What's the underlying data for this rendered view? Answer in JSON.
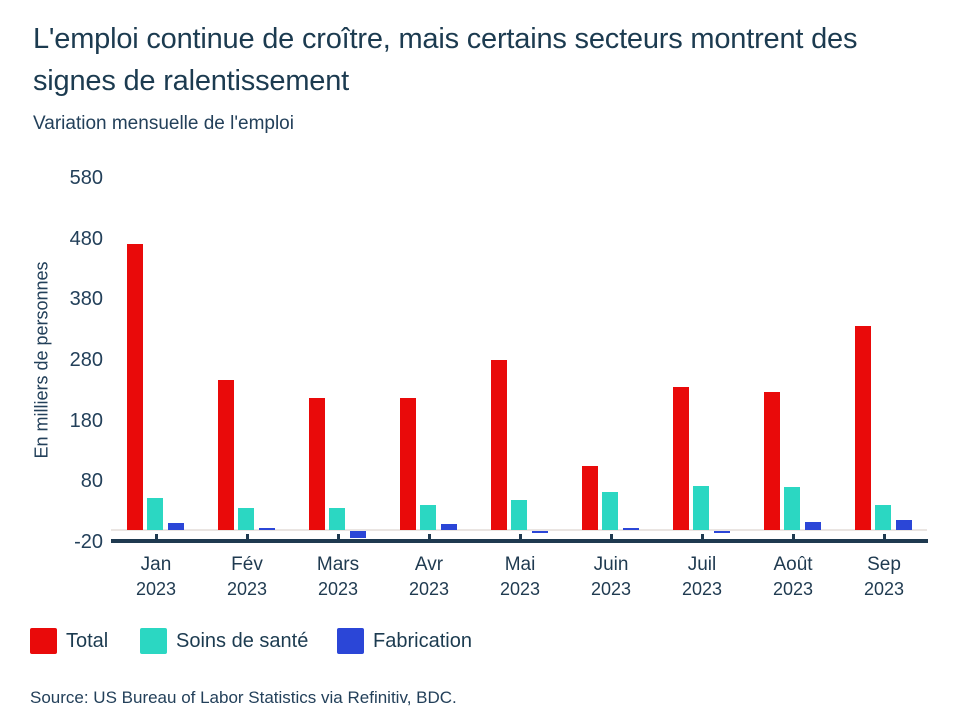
{
  "header": {
    "title": "L'emploi continue de croître, mais certains secteurs montrent des signes de ralentissement",
    "subtitle": "Variation mensuelle de l'emploi"
  },
  "chart_data": {
    "type": "bar",
    "categories": [
      "Jan",
      "Fév",
      "Mars",
      "Avr",
      "Mai",
      "Juin",
      "Juil",
      "Août",
      "Sep"
    ],
    "category_year": "2023",
    "series": [
      {
        "name": "Total",
        "color": "#e90a0a",
        "values": [
          472,
          248,
          217,
          217,
          281,
          105,
          236,
          227,
          336
        ]
      },
      {
        "name": "Soins de santé",
        "color": "#2bd7c2",
        "values": [
          53,
          36,
          36,
          41,
          50,
          63,
          73,
          71,
          41
        ]
      },
      {
        "name": "Fabrication",
        "color": "#2b46d7",
        "values": [
          12,
          3,
          -12,
          10,
          -3,
          3,
          -2,
          13,
          17
        ]
      }
    ],
    "title": "Variation mensuelle de l'emploi",
    "xlabel": "",
    "ylabel": "En milliers de personnes",
    "y_ticks": [
      580,
      480,
      380,
      280,
      180,
      80,
      -20
    ],
    "ylim": [
      -20,
      580
    ],
    "grid": "zero-baseline-only",
    "legend_position": "bottom-left"
  },
  "legend": {
    "items": [
      {
        "label": "Total",
        "color": "#e90a0a"
      },
      {
        "label": "Soins de santé",
        "color": "#2bd7c2"
      },
      {
        "label": "Fabrication",
        "color": "#2b46d7"
      }
    ]
  },
  "source": "Source: US Bureau of Labor Statistics via Refinitiv, BDC.",
  "colors": {
    "text": "#1c3b50",
    "axis": "#1f3a50",
    "zero_line": "#eae5e2",
    "background": "#ffffff"
  }
}
